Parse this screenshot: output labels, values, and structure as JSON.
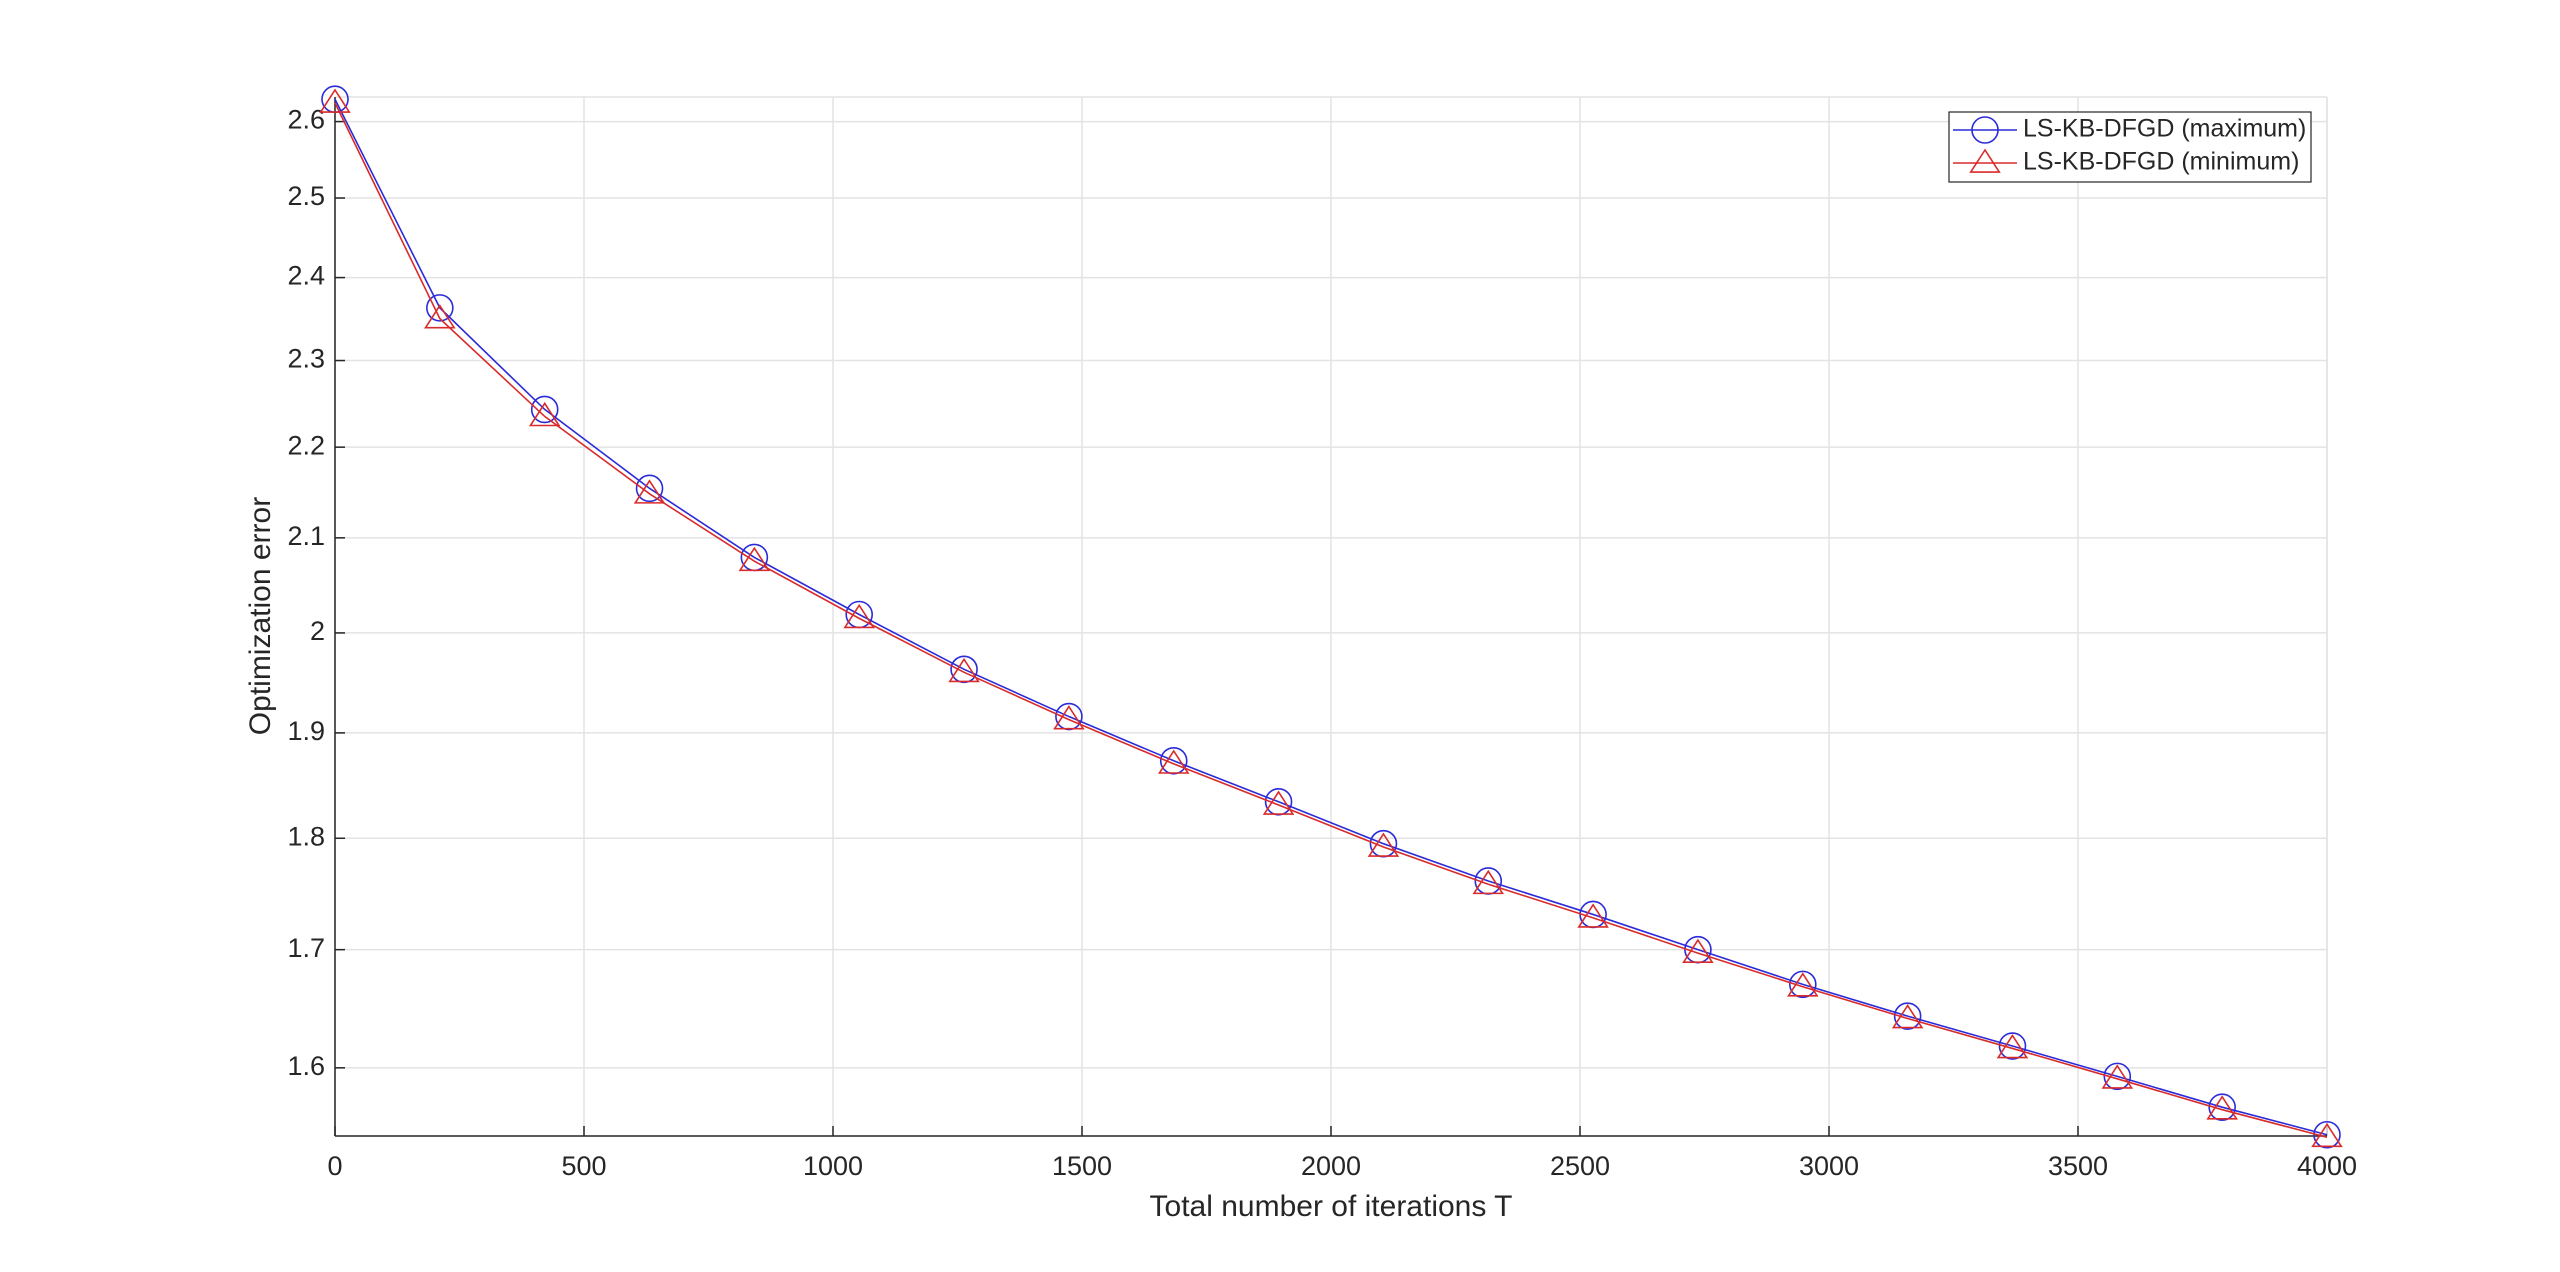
{
  "chart_data": {
    "type": "line",
    "xlabel": "Total number of iterations T",
    "ylabel": "Optimization error",
    "x": [
      0,
      210.5,
      421.1,
      631.6,
      842.1,
      1052.6,
      1263.2,
      1473.7,
      1684.2,
      1894.7,
      2105.3,
      2315.8,
      2526.3,
      2736.8,
      2947.4,
      3157.9,
      3368.4,
      3578.9,
      3789.5,
      4000
    ],
    "series": [
      {
        "name": "LS-KB-DFGD (maximum)",
        "color": "#2b2bd9",
        "marker": "circle",
        "values": [
          2.63,
          2.363,
          2.243,
          2.154,
          2.079,
          2.019,
          1.963,
          1.916,
          1.873,
          1.834,
          1.795,
          1.761,
          1.731,
          1.7,
          1.67,
          1.643,
          1.618,
          1.593,
          1.568,
          1.546
        ]
      },
      {
        "name": "LS-KB-DFGD (minimum)",
        "color": "#d92b2b",
        "marker": "triangle",
        "values": [
          2.625,
          2.35,
          2.235,
          2.148,
          2.075,
          2.015,
          1.96,
          1.913,
          1.87,
          1.831,
          1.792,
          1.758,
          1.728,
          1.697,
          1.668,
          1.641,
          1.616,
          1.591,
          1.566,
          1.544
        ]
      }
    ],
    "xlim": [
      0,
      4000
    ],
    "xticks": [
      0,
      500,
      1000,
      1500,
      2000,
      2500,
      3000,
      3500,
      4000
    ],
    "ylim": [
      1.545,
      2.633
    ],
    "yticks": [
      1.6,
      1.7,
      1.8,
      1.9,
      2,
      2.1,
      2.2,
      2.3,
      2.4,
      2.5,
      2.6
    ],
    "ylog": true,
    "grid": true,
    "legend": "northeast"
  }
}
